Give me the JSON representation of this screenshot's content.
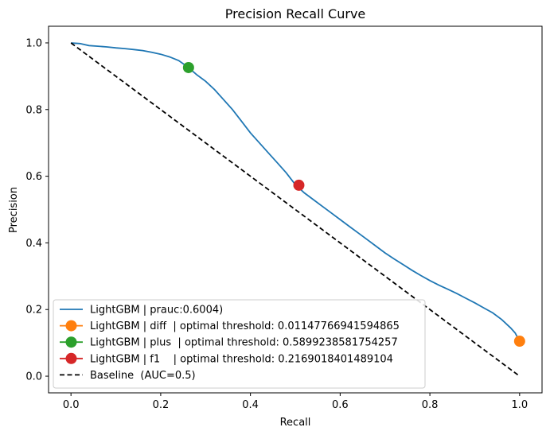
{
  "chart_data": {
    "type": "line",
    "title": "Precision Recall Curve",
    "xlabel": "Recall",
    "ylabel": "Precision",
    "xlim": [
      -0.05,
      1.05
    ],
    "ylim": [
      -0.05,
      1.05
    ],
    "xticks": [
      "0.0",
      "0.2",
      "0.4",
      "0.6",
      "0.8",
      "1.0"
    ],
    "yticks": [
      "0.0",
      "0.2",
      "0.4",
      "0.6",
      "0.8",
      "1.0"
    ],
    "xtick_values": [
      0,
      0.2,
      0.4,
      0.6,
      0.8,
      1.0
    ],
    "ytick_values": [
      0,
      0.2,
      0.4,
      0.6,
      0.8,
      1.0
    ],
    "grid": false,
    "legend_position": "lower-left",
    "series": [
      {
        "name": "LightGBM | prauc:0.6004)",
        "kind": "line",
        "color": "#1f77b4",
        "x": [
          0.0,
          0.02,
          0.04,
          0.06,
          0.08,
          0.1,
          0.12,
          0.14,
          0.16,
          0.18,
          0.2,
          0.22,
          0.24,
          0.26,
          0.28,
          0.3,
          0.32,
          0.34,
          0.36,
          0.38,
          0.4,
          0.42,
          0.44,
          0.46,
          0.48,
          0.5,
          0.52,
          0.54,
          0.56,
          0.58,
          0.6,
          0.62,
          0.64,
          0.66,
          0.68,
          0.7,
          0.72,
          0.74,
          0.76,
          0.78,
          0.8,
          0.82,
          0.84,
          0.86,
          0.88,
          0.9,
          0.92,
          0.94,
          0.96,
          0.98,
          0.99,
          1.0
        ],
        "y": [
          1.0,
          0.998,
          0.992,
          0.99,
          0.988,
          0.985,
          0.983,
          0.98,
          0.977,
          0.972,
          0.966,
          0.958,
          0.947,
          0.928,
          0.905,
          0.885,
          0.86,
          0.83,
          0.8,
          0.765,
          0.73,
          0.7,
          0.67,
          0.64,
          0.61,
          0.575,
          0.55,
          0.53,
          0.51,
          0.49,
          0.47,
          0.45,
          0.43,
          0.41,
          0.39,
          0.37,
          0.352,
          0.335,
          0.318,
          0.302,
          0.287,
          0.273,
          0.261,
          0.248,
          0.234,
          0.22,
          0.205,
          0.19,
          0.17,
          0.145,
          0.13,
          0.105
        ]
      },
      {
        "name": "LightGBM | diff  | optimal threshold: 0.01147766941594865",
        "kind": "marker",
        "color": "#ff7f0e",
        "x": [
          1.0
        ],
        "y": [
          0.105
        ]
      },
      {
        "name": "LightGBM | plus  | optimal threshold: 0.5899238581754257",
        "kind": "marker",
        "color": "#2ca02c",
        "x": [
          0.262
        ],
        "y": [
          0.926
        ]
      },
      {
        "name": "LightGBM | f1    | optimal threshold: 0.2169018401489104",
        "kind": "marker",
        "color": "#d62728",
        "x": [
          0.508
        ],
        "y": [
          0.573
        ]
      },
      {
        "name": "Baseline  (AUC=0.5)",
        "kind": "dashed",
        "color": "#000000",
        "x": [
          0.0,
          1.0
        ],
        "y": [
          1.0,
          0.0
        ]
      }
    ]
  }
}
